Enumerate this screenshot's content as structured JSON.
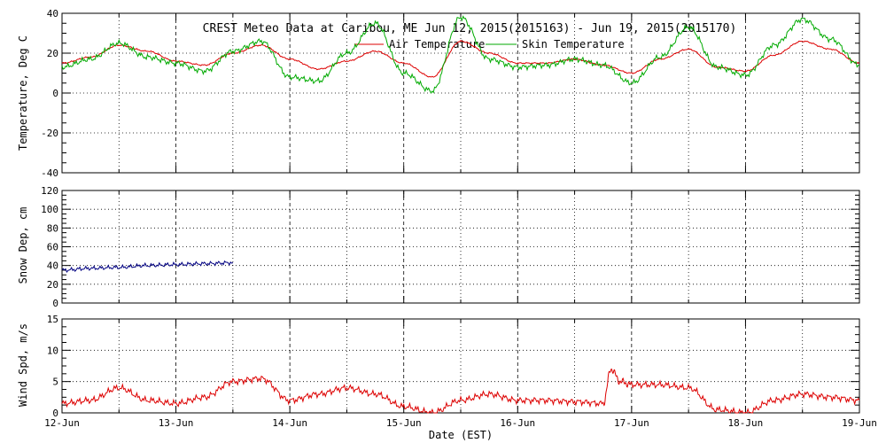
{
  "chart_data": [
    {
      "type": "line",
      "title": "CREST Meteo Data at Caribou, ME   Jun 12, 2015(2015163) - Jun 19, 2015(2015170)",
      "xlabel": "",
      "ylabel": "Temperature, Deg C",
      "xlim": [
        0,
        7
      ],
      "ylim": [
        -40,
        40
      ],
      "yticks": [
        -40,
        -20,
        0,
        20,
        40
      ],
      "x": [
        0,
        0.25,
        0.5,
        0.75,
        1.0,
        1.25,
        1.5,
        1.75,
        2.0,
        2.25,
        2.5,
        2.75,
        3.0,
        3.25,
        3.5,
        3.75,
        4.0,
        4.25,
        4.5,
        4.75,
        5.0,
        5.25,
        5.5,
        5.75,
        6.0,
        6.25,
        6.5,
        6.75,
        7.0
      ],
      "series": [
        {
          "name": "Air Temperature",
          "color": "#dd0000",
          "values": [
            15,
            18,
            24,
            21,
            16,
            14,
            20,
            24,
            17,
            12,
            16,
            21,
            15,
            8,
            26,
            20,
            15,
            15,
            17,
            14,
            10,
            17,
            22,
            13,
            11,
            19,
            26,
            22,
            15
          ]
        },
        {
          "name": "Skin Temperature",
          "color": "#00aa00",
          "values": [
            13,
            17,
            25,
            18,
            15,
            11,
            21,
            26,
            8,
            6,
            20,
            35,
            10,
            1,
            38,
            17,
            13,
            14,
            17,
            14,
            5,
            18,
            33,
            13,
            9,
            24,
            37,
            27,
            14
          ]
        }
      ],
      "grid": true,
      "legend": "top-center"
    },
    {
      "type": "line",
      "ylabel": "Snow Dep, cm",
      "xlim": [
        0,
        7
      ],
      "ylim": [
        0,
        120
      ],
      "yticks": [
        0,
        20,
        40,
        60,
        80,
        100,
        120
      ],
      "x": [
        0,
        0.25,
        0.5,
        0.75,
        1.0,
        1.25,
        1.5
      ],
      "series": [
        {
          "color": "#000080",
          "values": [
            35,
            37,
            38,
            40,
            41,
            42,
            43
          ]
        }
      ],
      "grid": true
    },
    {
      "type": "line",
      "xlabel": "Date (EST)",
      "ylabel": "Wind Spd, m/s",
      "xlim": [
        0,
        7
      ],
      "ylim": [
        0,
        15
      ],
      "yticks": [
        0,
        5,
        10,
        15
      ],
      "categories": [
        "12-Jun",
        "13-Jun",
        "14-Jun",
        "15-Jun",
        "16-Jun",
        "17-Jun",
        "18-Jun",
        "19-Jun"
      ],
      "x": [
        0,
        0.25,
        0.5,
        0.75,
        1.0,
        1.25,
        1.5,
        1.75,
        2.0,
        2.25,
        2.5,
        2.75,
        3.0,
        3.25,
        3.5,
        3.75,
        4.0,
        4.25,
        4.5,
        4.75,
        4.82,
        4.9,
        5.0,
        5.25,
        5.5,
        5.75,
        6.0,
        6.25,
        6.5,
        6.75,
        7.0
      ],
      "series": [
        {
          "color": "#dd0000",
          "values": [
            1.5,
            2,
            4,
            2,
            1.5,
            2.5,
            5,
            5.5,
            2,
            3,
            4,
            3,
            1,
            0,
            2,
            3,
            2,
            2,
            1.8,
            1.5,
            7,
            5,
            4.5,
            4.5,
            4,
            0.5,
            0,
            2,
            3,
            2.5,
            2
          ]
        }
      ],
      "grid": true
    }
  ]
}
